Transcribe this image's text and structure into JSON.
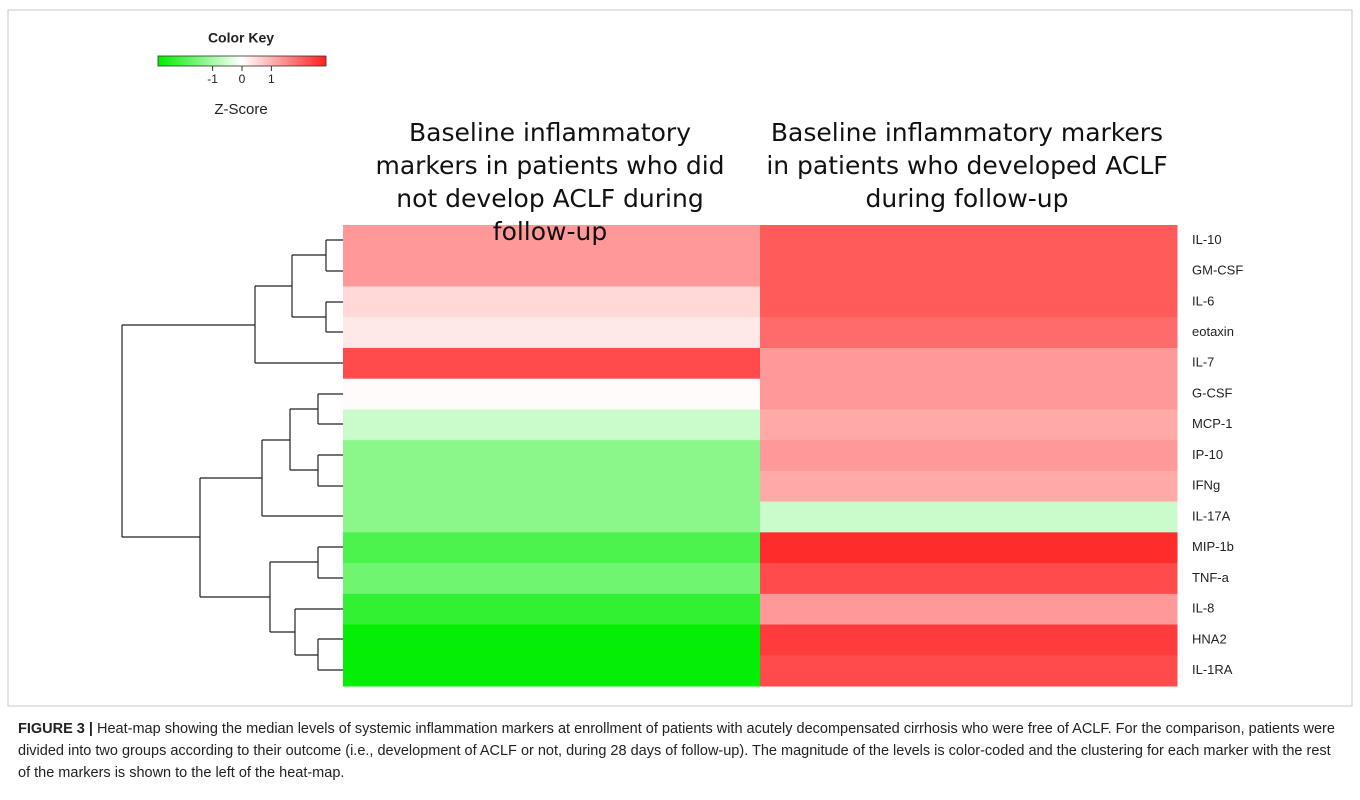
{
  "chart_data": {
    "type": "heatmap",
    "key_title": "Color Key",
    "key_label": "Z-Score",
    "zlim": [
      -2.86,
      2.86
    ],
    "zticks": [
      -1,
      0,
      1
    ],
    "low_color": "#00ee00",
    "mid_color": "#ffffff",
    "high_color": "#ff1f1f",
    "categories": [
      "IL-10",
      "GM-CSF",
      "IL-6",
      "eotaxin",
      "IL-7",
      "G-CSF",
      "MCP-1",
      "IP-10",
      "IFNg",
      "IL-17A",
      "MIP-1b",
      "TNF-a",
      "IL-8",
      "HNA2",
      "IL-1RA"
    ],
    "series": [
      {
        "name": "Baseline inflammatory markers in patients who did not develop ACLF during follow-up",
        "values": [
          1.3,
          1.3,
          0.5,
          0.3,
          2.3,
          0.05,
          -0.6,
          -1.3,
          -1.3,
          -1.3,
          -2.0,
          -1.6,
          -2.3,
          -2.8,
          -2.8
        ]
      },
      {
        "name": "Baseline inflammatory markers in patients who developed ACLF during follow-up",
        "values": [
          2.1,
          2.1,
          2.1,
          1.9,
          1.3,
          1.3,
          1.1,
          1.3,
          1.1,
          -0.6,
          2.7,
          2.3,
          1.3,
          2.5,
          2.3
        ]
      }
    ]
  },
  "caption": {
    "label": "FIGURE 3 |",
    "text": "Heat-map showing the median levels of systemic inflammation markers at enrollment of patients with acutely decompensated cirrhosis who were free of ACLF. For the comparison, patients were divided into two groups according to their outcome (i.e., development of ACLF or not, during 28 days of follow-up). The magnitude of the levels is color-coded and the clustering for each marker with the rest of the markers is shown to the left of the heat-map."
  }
}
